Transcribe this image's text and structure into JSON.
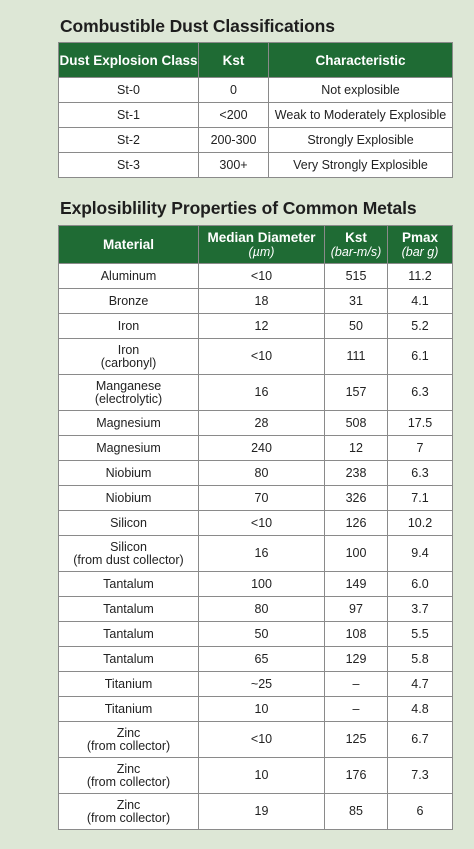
{
  "table1": {
    "title": "Combustible Dust Classifications",
    "headers": [
      "Dust Explosion Class",
      "Kst",
      "Characteristic"
    ],
    "rows": [
      [
        "St-0",
        "0",
        "Not explosible"
      ],
      [
        "St-1",
        "<200",
        "Weak to Moderately Explosible"
      ],
      [
        "St-2",
        "200-300",
        "Strongly Explosible"
      ],
      [
        "St-3",
        "300+",
        "Very Strongly Explosible"
      ]
    ]
  },
  "table2": {
    "title": "Explosiblility Properties of Common Metals",
    "headers": [
      {
        "label": "Material",
        "unit": ""
      },
      {
        "label": "Median Diameter",
        "unit": "(µm)"
      },
      {
        "label": "Kst",
        "unit": "(bar-m/s)"
      },
      {
        "label": "Pmax",
        "unit": "(bar g)"
      }
    ],
    "rows": [
      {
        "material": "Aluminum",
        "sub": "",
        "diameter": "<10",
        "kst": "515",
        "pmax": "11.2"
      },
      {
        "material": "Bronze",
        "sub": "",
        "diameter": "18",
        "kst": "31",
        "pmax": "4.1"
      },
      {
        "material": "Iron",
        "sub": "",
        "diameter": "12",
        "kst": "50",
        "pmax": "5.2"
      },
      {
        "material": "Iron",
        "sub": "(carbonyl)",
        "diameter": "<10",
        "kst": "111",
        "pmax": "6.1"
      },
      {
        "material": "Manganese",
        "sub": "(electrolytic)",
        "diameter": "16",
        "kst": "157",
        "pmax": "6.3"
      },
      {
        "material": "Magnesium",
        "sub": "",
        "diameter": "28",
        "kst": "508",
        "pmax": "17.5"
      },
      {
        "material": "Magnesium",
        "sub": "",
        "diameter": "240",
        "kst": "12",
        "pmax": "7"
      },
      {
        "material": "Niobium",
        "sub": "",
        "diameter": "80",
        "kst": "238",
        "pmax": "6.3"
      },
      {
        "material": "Niobium",
        "sub": "",
        "diameter": "70",
        "kst": "326",
        "pmax": "7.1"
      },
      {
        "material": "Silicon",
        "sub": "",
        "diameter": "<10",
        "kst": "126",
        "pmax": "10.2"
      },
      {
        "material": "Silicon",
        "sub": "(from dust collector)",
        "diameter": "16",
        "kst": "100",
        "pmax": "9.4"
      },
      {
        "material": "Tantalum",
        "sub": "",
        "diameter": "100",
        "kst": "149",
        "pmax": "6.0"
      },
      {
        "material": "Tantalum",
        "sub": "",
        "diameter": "80",
        "kst": "97",
        "pmax": "3.7"
      },
      {
        "material": "Tantalum",
        "sub": "",
        "diameter": "50",
        "kst": "108",
        "pmax": "5.5"
      },
      {
        "material": "Tantalum",
        "sub": "",
        "diameter": "65",
        "kst": "129",
        "pmax": "5.8"
      },
      {
        "material": "Titanium",
        "sub": "",
        "diameter": "~25",
        "kst": "–",
        "pmax": "4.7"
      },
      {
        "material": "Titanium",
        "sub": "",
        "diameter": "10",
        "kst": "–",
        "pmax": "4.8"
      },
      {
        "material": "Zinc",
        "sub": "(from collector)",
        "diameter": "<10",
        "kst": "125",
        "pmax": "6.7"
      },
      {
        "material": "Zinc",
        "sub": "(from collector)",
        "diameter": "10",
        "kst": "176",
        "pmax": "7.3"
      },
      {
        "material": "Zinc",
        "sub": "(from collector)",
        "diameter": "19",
        "kst": "85",
        "pmax": "6"
      }
    ]
  },
  "colors": {
    "header_bg": "#1f6b34",
    "page_bg": "#dde7d6"
  }
}
